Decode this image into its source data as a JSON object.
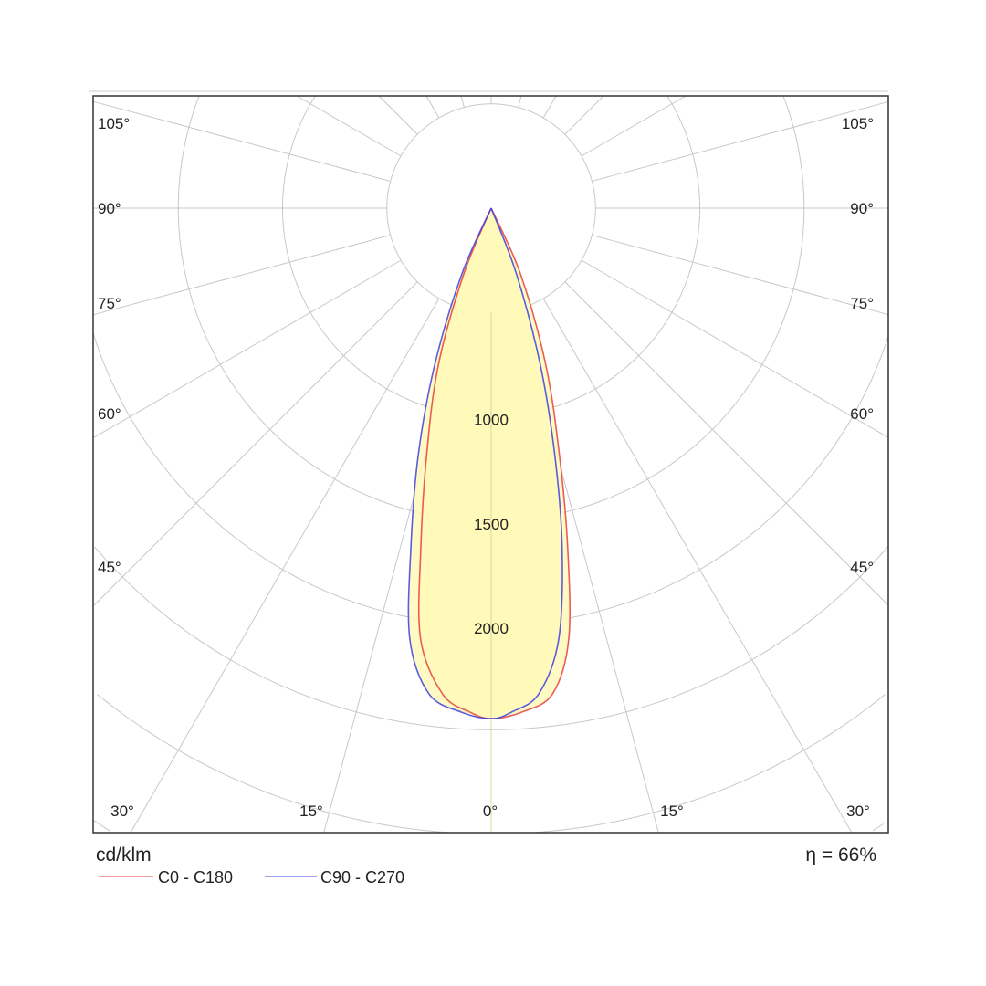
{
  "chart_data": {
    "type": "polar",
    "title": "",
    "unit_label": "cd/klm",
    "efficiency_label": "η = 66%",
    "radial_ticks": [
      500,
      1000,
      1500,
      2000,
      2500,
      3000,
      3500,
      4000,
      4500
    ],
    "radial_tick_labels": [
      "1000",
      "1500",
      "2000"
    ],
    "radial_tick_label_values": [
      1000,
      1500,
      2000
    ],
    "angle_ticks": [
      0,
      15,
      30,
      45,
      60,
      75,
      90,
      105
    ],
    "angle_tick_labels": [
      "0°",
      "15°",
      "30°",
      "45°",
      "60°",
      "75°",
      "90°",
      "105°"
    ],
    "grid": true,
    "legend_position": "bottom-left",
    "fill_color": "#fff9b8",
    "series": [
      {
        "name": "C0 - C180",
        "color": "#e84040",
        "legend_color": "#f4a0a0",
        "points": [
          [
            -90,
            0
          ],
          [
            -22.6,
            341
          ],
          [
            -18.6,
            794
          ],
          [
            -14.6,
            1230
          ],
          [
            -11.7,
            1663
          ],
          [
            -9.3,
            2093
          ],
          [
            -5.7,
            2341
          ],
          [
            -2.4,
            2418
          ],
          [
            0,
            2447
          ],
          [
            3.5,
            2420
          ],
          [
            7.2,
            2347
          ],
          [
            10.2,
            2099
          ],
          [
            12.7,
            1668
          ],
          [
            15.4,
            1235
          ],
          [
            19.2,
            797
          ],
          [
            24,
            345
          ],
          [
            90,
            0
          ]
        ]
      },
      {
        "name": "C90 - C270",
        "color": "#4040e0",
        "legend_color": "#a0a0f4",
        "points": [
          [
            -90,
            0
          ],
          [
            -24,
            345
          ],
          [
            -19.8,
            800
          ],
          [
            -16.4,
            1241
          ],
          [
            -13.3,
            1673
          ],
          [
            -10.7,
            2101
          ],
          [
            -7.3,
            2347
          ],
          [
            -3.4,
            2420
          ],
          [
            0,
            2447
          ],
          [
            2.3,
            2418
          ],
          [
            5.6,
            2339
          ],
          [
            8.9,
            2092
          ],
          [
            11.8,
            1663
          ],
          [
            14.4,
            1230
          ],
          [
            17.4,
            789
          ],
          [
            21,
            337
          ],
          [
            90,
            0
          ]
        ]
      }
    ]
  }
}
